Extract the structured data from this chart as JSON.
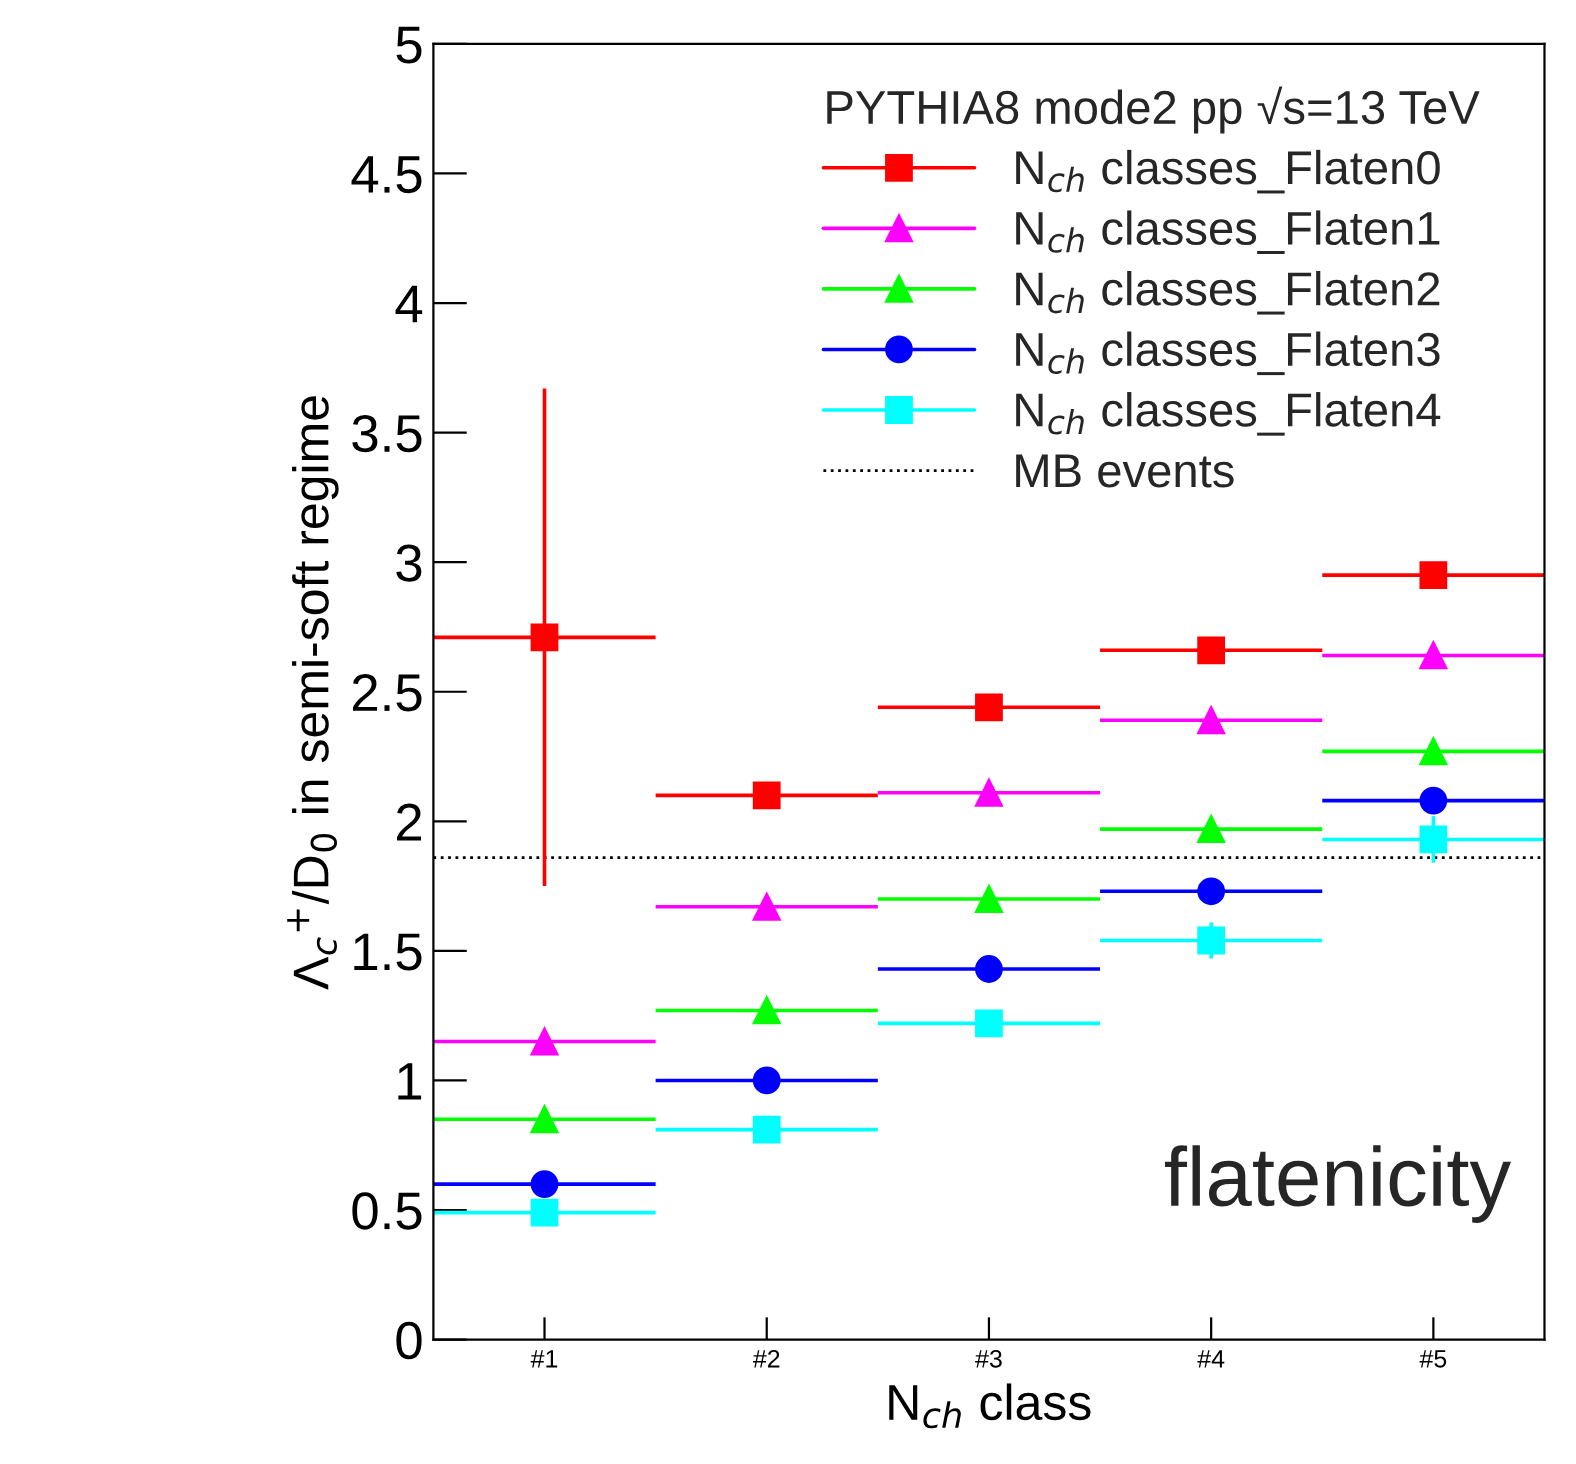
{
  "chart_data": {
    "type": "scatter",
    "ylabel": "Λ$_{c}$$^{+}$/D$_{0}$ in semi-soft regime",
    "xlabel": "N$_{ch}$ class",
    "legend_title": "PYTHIA8 mode2 pp √s=13 TeV",
    "x": [
      1,
      2,
      3,
      4,
      5
    ],
    "xlim": [
      0.5,
      5.5
    ],
    "xticks": [
      {
        "value": 1,
        "label": "#1"
      },
      {
        "value": 2,
        "label": "#2"
      },
      {
        "value": 3,
        "label": "#3"
      },
      {
        "value": 4,
        "label": "#4"
      },
      {
        "value": 5,
        "label": "#5"
      }
    ],
    "series": [
      {
        "name": "N$_{ch}$ classes_Flaten0",
        "color": "#ff0000",
        "marker": "square",
        "values": [
          2.71,
          2.1,
          2.44,
          2.66,
          2.95
        ],
        "errors": [
          [
            1.75,
            3.67
          ],
          null,
          null,
          null,
          null
        ],
        "xerrors": [
          0.5,
          0.5,
          0.5,
          0.5,
          0.5
        ]
      },
      {
        "name": "N$_{ch}$ classes_Flaten1",
        "color": "#ff00ff",
        "marker": "triangle",
        "values": [
          1.15,
          1.67,
          2.11,
          2.39,
          2.64
        ],
        "xerrors": [
          0.5,
          0.5,
          0.5,
          0.5,
          0.5
        ]
      },
      {
        "name": "N$_{ch}$ classes_Flaten2",
        "color": "#00ff00",
        "marker": "triangle",
        "values": [
          0.85,
          1.27,
          1.7,
          1.97,
          2.27
        ],
        "xerrors": [
          0.5,
          0.5,
          0.5,
          0.5,
          0.5
        ]
      },
      {
        "name": "N$_{ch}$ classes_Flaten3",
        "color": "#0000ff",
        "marker": "circle",
        "values": [
          0.6,
          1.0,
          1.43,
          1.73,
          2.08
        ],
        "xerrors": [
          0.5,
          0.5,
          0.5,
          0.5,
          0.5
        ]
      },
      {
        "name": "N$_{ch}$ classes_Flaten4",
        "color": "#00ffff",
        "marker": "square",
        "values": [
          0.49,
          0.81,
          1.22,
          1.54,
          1.93
        ],
        "errors": [
          null,
          null,
          null,
          [
            1.47,
            1.61
          ],
          [
            1.84,
            2.02
          ]
        ],
        "xerrors": [
          0.5,
          0.5,
          0.5,
          0.5,
          0.5
        ]
      }
    ],
    "ref_lines": [
      {
        "axis": "y",
        "value": 1.86,
        "label": "MB events",
        "color": "#000000",
        "line_style": "dotted"
      }
    ],
    "ylim": [
      0,
      5
    ],
    "yticks": [
      0,
      0.5,
      1,
      1.5,
      2,
      2.5,
      3,
      3.5,
      4,
      4.5,
      5
    ],
    "grid": false,
    "legend": "top right",
    "annotations": [
      "flatenicity"
    ]
  }
}
